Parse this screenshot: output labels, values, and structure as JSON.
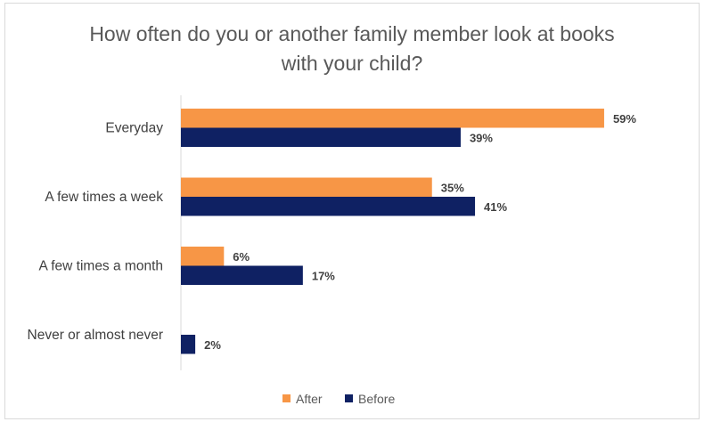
{
  "chart_data": {
    "type": "bar",
    "orientation": "horizontal",
    "title_lines": [
      "How often do you or another family member look at books",
      "with your child?"
    ],
    "categories": [
      "Everyday",
      "A few times a week",
      "A few times a month",
      "Never or almost never"
    ],
    "series": [
      {
        "name": "After",
        "values": [
          59,
          35,
          6,
          null
        ],
        "labels": [
          "59%",
          "35%",
          "6%",
          ""
        ]
      },
      {
        "name": "Before",
        "values": [
          39,
          41,
          17,
          2
        ],
        "labels": [
          "39%",
          "41%",
          "17%",
          "2%"
        ]
      }
    ],
    "unit": "%",
    "xlim": [
      0,
      70
    ],
    "grid": false,
    "legend_position": "bottom"
  },
  "colors": {
    "After": "#F79646",
    "Before": "#0F2163",
    "axis": "#d9d9d9"
  }
}
